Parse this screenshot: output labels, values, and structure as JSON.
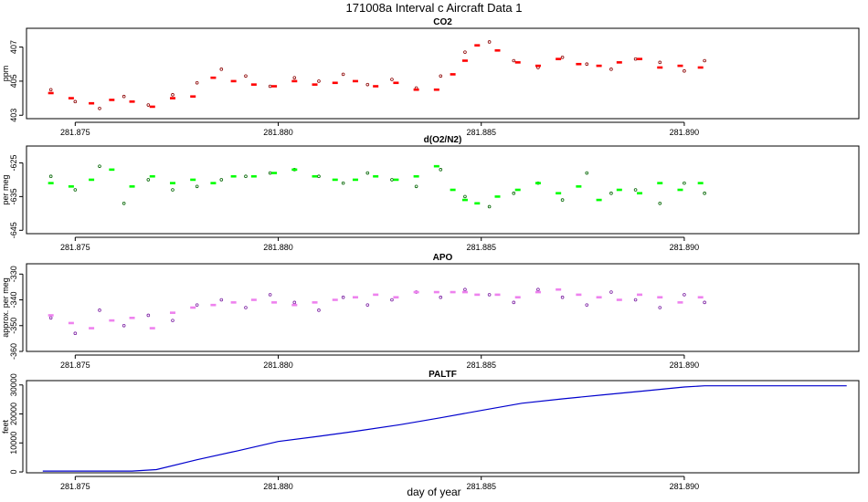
{
  "page": {
    "title": "171008a   Interval c Aircraft Data 1",
    "xlabel": "day of year"
  },
  "chart_data": [
    {
      "type": "scatter",
      "title": "CO2",
      "ylabel": "ppm",
      "xlim": [
        281.8738,
        281.8943
      ],
      "ylim": [
        402.8,
        408.1
      ],
      "xticks": [
        "281.875",
        "281.880",
        "281.885",
        "281.890"
      ],
      "yticks": [
        "403",
        "405",
        "407"
      ],
      "series": [
        {
          "marker": "point",
          "color": "#8B0000",
          "x": [
            281.8744,
            281.875,
            281.8756,
            281.8762,
            281.8768,
            281.8774,
            281.878,
            281.8786,
            281.8792,
            281.8798,
            281.8804,
            281.881,
            281.8816,
            281.8822,
            281.8828,
            281.8834,
            281.884,
            281.8846,
            281.8852,
            281.8858,
            281.8864,
            281.887,
            281.8876,
            281.8882,
            281.8888,
            281.8894,
            281.89,
            281.8905
          ],
          "y": [
            404.5,
            403.8,
            403.4,
            404.1,
            403.6,
            404.2,
            404.9,
            405.7,
            405.3,
            404.7,
            405.2,
            405.0,
            405.4,
            404.8,
            405.1,
            404.6,
            405.3,
            406.7,
            407.3,
            406.2,
            405.8,
            406.4,
            406.0,
            405.7,
            406.3,
            406.1,
            405.6,
            406.2
          ]
        },
        {
          "marker": "dash",
          "color": "#FF0000",
          "x": [
            281.8744,
            281.8749,
            281.8754,
            281.8759,
            281.8764,
            281.8769,
            281.8774,
            281.8779,
            281.8784,
            281.8789,
            281.8794,
            281.8799,
            281.8804,
            281.8809,
            281.8814,
            281.8819,
            281.8824,
            281.8829,
            281.8834,
            281.8839,
            281.8843,
            281.8846,
            281.8849,
            281.8854,
            281.8859,
            281.8864,
            281.8869,
            281.8874,
            281.8879,
            281.8884,
            281.8889,
            281.8894,
            281.8899,
            281.8904
          ],
          "y": [
            404.3,
            404.0,
            403.7,
            403.9,
            403.8,
            403.5,
            404.0,
            404.1,
            405.2,
            405.0,
            404.8,
            404.7,
            405.0,
            404.8,
            404.9,
            405.0,
            404.7,
            404.9,
            404.5,
            404.5,
            405.4,
            406.2,
            407.1,
            406.8,
            406.1,
            405.9,
            406.3,
            406.0,
            405.9,
            406.1,
            406.3,
            405.8,
            405.9,
            405.8
          ]
        }
      ]
    },
    {
      "type": "scatter",
      "title": "d(O2/N2)",
      "ylabel": "per meg",
      "xlim": [
        281.8738,
        281.8943
      ],
      "ylim": [
        -646,
        -620
      ],
      "xticks": [
        "281.875",
        "281.880",
        "281.885",
        "281.890"
      ],
      "yticks": [
        "-625",
        "-635",
        "-645"
      ],
      "series": [
        {
          "marker": "point",
          "color": "#006400",
          "x": [
            281.8744,
            281.875,
            281.8756,
            281.8762,
            281.8768,
            281.8774,
            281.878,
            281.8786,
            281.8792,
            281.8798,
            281.8804,
            281.881,
            281.8816,
            281.8822,
            281.8828,
            281.8834,
            281.884,
            281.8846,
            281.8852,
            281.8858,
            281.8864,
            281.887,
            281.8876,
            281.8882,
            281.8888,
            281.8894,
            281.89,
            281.8905
          ],
          "y": [
            -629,
            -633,
            -626,
            -637,
            -630,
            -633,
            -632,
            -630,
            -629,
            -628,
            -627,
            -629,
            -631,
            -628,
            -630,
            -632,
            -627,
            -635,
            -638,
            -634,
            -631,
            -636,
            -628,
            -634,
            -633,
            -637,
            -631,
            -634
          ]
        },
        {
          "marker": "dash",
          "color": "#00FF00",
          "x": [
            281.8744,
            281.8749,
            281.8754,
            281.8759,
            281.8764,
            281.8769,
            281.8774,
            281.8779,
            281.8784,
            281.8789,
            281.8794,
            281.8799,
            281.8804,
            281.8809,
            281.8814,
            281.8819,
            281.8824,
            281.8829,
            281.8834,
            281.8839,
            281.8843,
            281.8846,
            281.8849,
            281.8854,
            281.8859,
            281.8864,
            281.8869,
            281.8874,
            281.8879,
            281.8884,
            281.8889,
            281.8894,
            281.8899,
            281.8904
          ],
          "y": [
            -631,
            -632,
            -630,
            -627,
            -632,
            -629,
            -631,
            -630,
            -631,
            -629,
            -629,
            -628,
            -627,
            -629,
            -630,
            -630,
            -629,
            -630,
            -629,
            -626,
            -633,
            -636,
            -637,
            -635,
            -633,
            -631,
            -634,
            -632,
            -636,
            -633,
            -634,
            -631,
            -633,
            -631
          ]
        }
      ]
    },
    {
      "type": "scatter",
      "title": "APO",
      "ylabel": "approx. per meg",
      "xlim": [
        281.8738,
        281.8943
      ],
      "ylim": [
        -360,
        -326
      ],
      "xticks": [
        "281.875",
        "281.880",
        "281.885",
        "281.890"
      ],
      "yticks": [
        "-330",
        "-340",
        "-350",
        "-360"
      ],
      "series": [
        {
          "marker": "point",
          "color": "#7B1FA2",
          "x": [
            281.8744,
            281.875,
            281.8756,
            281.8762,
            281.8768,
            281.8774,
            281.878,
            281.8786,
            281.8792,
            281.8798,
            281.8804,
            281.881,
            281.8816,
            281.8822,
            281.8828,
            281.8834,
            281.884,
            281.8846,
            281.8852,
            281.8858,
            281.8864,
            281.887,
            281.8876,
            281.8882,
            281.8888,
            281.8894,
            281.89,
            281.8905
          ],
          "y": [
            -347,
            -353,
            -344,
            -350,
            -346,
            -348,
            -342,
            -340,
            -343,
            -338,
            -341,
            -344,
            -339,
            -342,
            -340,
            -337,
            -339,
            -336,
            -338,
            -341,
            -336,
            -339,
            -342,
            -337,
            -340,
            -343,
            -338,
            -341
          ]
        },
        {
          "marker": "dash",
          "color": "#EE82EE",
          "x": [
            281.8744,
            281.8749,
            281.8754,
            281.8759,
            281.8764,
            281.8769,
            281.8774,
            281.8779,
            281.8784,
            281.8789,
            281.8794,
            281.8799,
            281.8804,
            281.8809,
            281.8814,
            281.8819,
            281.8824,
            281.8829,
            281.8834,
            281.8839,
            281.8843,
            281.8846,
            281.8849,
            281.8854,
            281.8859,
            281.8864,
            281.8869,
            281.8874,
            281.8879,
            281.8884,
            281.8889,
            281.8894,
            281.8899,
            281.8904
          ],
          "y": [
            -346,
            -349,
            -351,
            -348,
            -347,
            -351,
            -345,
            -343,
            -342,
            -341,
            -340,
            -341,
            -342,
            -341,
            -340,
            -339,
            -338,
            -339,
            -337,
            -337,
            -337,
            -337,
            -338,
            -338,
            -339,
            -337,
            -336,
            -338,
            -339,
            -340,
            -338,
            -339,
            -341,
            -339
          ]
        }
      ]
    },
    {
      "type": "line",
      "title": "PALTF",
      "ylabel": "feet",
      "xlim": [
        281.8738,
        281.8943
      ],
      "ylim": [
        -300,
        31500
      ],
      "xticks": [
        "281.875",
        "281.880",
        "281.885",
        "281.890"
      ],
      "yticks": [
        "0",
        "10000",
        "20000",
        "30000"
      ],
      "series": [
        {
          "color": "#0000CD",
          "x": [
            281.8742,
            281.875,
            281.8764,
            281.877,
            281.878,
            281.879,
            281.88,
            281.881,
            281.882,
            281.883,
            281.884,
            281.885,
            281.886,
            281.887,
            281.888,
            281.889,
            281.89,
            281.8905,
            281.892,
            281.894
          ],
          "y": [
            300,
            300,
            300,
            800,
            4200,
            7300,
            10500,
            12300,
            14200,
            16300,
            18700,
            21200,
            23700,
            25200,
            26600,
            27900,
            29300,
            29700,
            29700,
            29700
          ]
        }
      ]
    }
  ]
}
